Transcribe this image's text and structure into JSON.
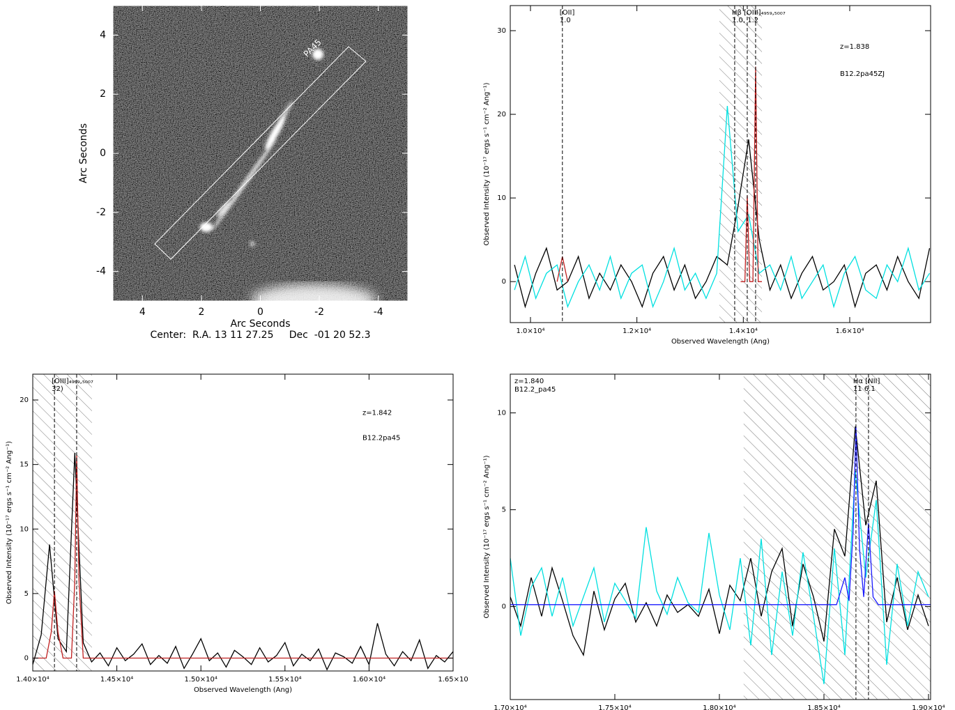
{
  "chart_data": [
    {
      "type": "image",
      "xlim": [
        5,
        -5
      ],
      "ylim": [
        -5,
        5
      ],
      "xticks": [
        4,
        2,
        0,
        -2,
        -4
      ],
      "yticks": [
        -4,
        -2,
        0,
        2,
        4
      ],
      "xlabel": "Arc Seconds",
      "ylabel": "Arc Seconds",
      "caption": "Center:  R.A. 13 11 27.25     Dec  -01 20 52.3",
      "annotation": "PA45"
    },
    {
      "type": "spectrum",
      "xlabel": "Observed Wavelength (Ang)",
      "ylabel": "Observed Intensity (10⁻¹⁷ ergs s⁻¹ cm⁻² Ang⁻¹)",
      "xlim": [
        9620,
        17520
      ],
      "ylim": [
        -4.9,
        33
      ],
      "xticks": [
        {
          "value": 10000,
          "label": "1.0×10⁴"
        },
        {
          "value": 12000,
          "label": "1.2×10⁴"
        },
        {
          "value": 14000,
          "label": "1.4×10⁴"
        },
        {
          "value": 16000,
          "label": "1.6×10⁴"
        }
      ],
      "yticks": [
        0,
        10,
        20,
        30
      ],
      "shaded_range": [
        13550,
        14350
      ],
      "markers": [
        10600,
        13838,
        14074,
        14231
      ],
      "annotations": [
        {
          "x": 10600,
          "lines": [
            "[OII]",
            "1.0"
          ]
        },
        {
          "x": 13838,
          "lines": [
            "Hβ [OIII]₄₉₅₉,₅₀₀₇",
            "1.0, 1.2"
          ]
        }
      ],
      "notes": [
        "z=1.838",
        "B12.2pa45ZJ"
      ],
      "notes_corner": "upper right",
      "x": [
        9700,
        9900,
        10100,
        10300,
        10500,
        10700,
        10900,
        11100,
        11300,
        11500,
        11700,
        11900,
        12100,
        12300,
        12500,
        12700,
        12900,
        13100,
        13300,
        13500,
        13700,
        13900,
        14100,
        14300,
        14500,
        14700,
        14900,
        15100,
        15300,
        15500,
        15700,
        15900,
        16100,
        16300,
        16500,
        16700,
        16900,
        17100,
        17300,
        17500
      ],
      "series": [
        {
          "color": "#000000",
          "values": [
            2,
            -3,
            1,
            4,
            -1,
            0,
            3,
            -2,
            1,
            -1,
            2,
            0,
            -3,
            1,
            3,
            -1,
            2,
            -2,
            0,
            3,
            2,
            9,
            17,
            5,
            -1,
            2,
            -2,
            1,
            3,
            -1,
            0,
            2,
            -3,
            1,
            2,
            -1,
            3,
            0,
            -2,
            4
          ]
        },
        {
          "color": "#00e0e0",
          "values": [
            -1,
            3,
            -2,
            1,
            2,
            -3,
            0,
            2,
            -1,
            3,
            -2,
            1,
            2,
            -3,
            0,
            4,
            -1,
            1,
            -2,
            1,
            21,
            6,
            8,
            1,
            2,
            -1,
            3,
            -2,
            0,
            2,
            -3,
            1,
            3,
            -1,
            -2,
            2,
            0,
            4,
            -1,
            1
          ]
        },
        {
          "color": "#c02020",
          "x": [
            10500,
            10600,
            10700,
            12000,
            13950,
            14030,
            14074,
            14120,
            14180,
            14231,
            14280,
            14350
          ],
          "values": [
            0,
            3,
            0,
            null,
            0,
            0,
            10.3,
            0,
            0,
            25.7,
            0,
            0
          ]
        }
      ]
    },
    {
      "type": "spectrum",
      "xlabel": "Observed Wavelength (Ang)",
      "ylabel": "Observed Intensity (10⁻¹⁷ ergs s⁻¹ cm⁻² Ang⁻¹)",
      "xlim": [
        14000,
        16500
      ],
      "ylim": [
        -1,
        22
      ],
      "xticks": [
        {
          "value": 14000,
          "label": "1.40×10⁴"
        },
        {
          "value": 14500,
          "label": "1.45×10⁴"
        },
        {
          "value": 15000,
          "label": "1.50×10⁴"
        },
        {
          "value": 15500,
          "label": "1.55×10⁴"
        },
        {
          "value": 16000,
          "label": "1.60×10⁴"
        },
        {
          "value": 16500,
          "label": "1.65×10"
        }
      ],
      "yticks": [
        0,
        5,
        10,
        15,
        20
      ],
      "shaded_range": [
        14000,
        14352
      ],
      "markers": [
        14129,
        14261
      ],
      "annotations": [
        {
          "x": 14129,
          "lines": [
            "[OIII]₄₉₅₉,₅₀₀₇",
            "32)"
          ]
        }
      ],
      "notes": [
        "z=1.842",
        "B12.2pa45"
      ],
      "notes_corner": "upper right",
      "x": [
        14000,
        14050,
        14100,
        14150,
        14200,
        14250,
        14300,
        14350,
        14400,
        14450,
        14500,
        14550,
        14600,
        14650,
        14700,
        14750,
        14800,
        14850,
        14900,
        14950,
        15000,
        15050,
        15100,
        15150,
        15200,
        15250,
        15300,
        15350,
        15400,
        15450,
        15500,
        15550,
        15600,
        15650,
        15700,
        15750,
        15800,
        15850,
        15900,
        15950,
        16000,
        16050,
        16100,
        16150,
        16200,
        16250,
        16300,
        16350,
        16400,
        16450,
        16500
      ],
      "series": [
        {
          "color": "#000000",
          "values": [
            -0.5,
            1.8,
            8.8,
            1.5,
            0.5,
            15.9,
            1.2,
            -0.3,
            0.4,
            -0.6,
            0.8,
            -0.2,
            0.3,
            1.1,
            -0.5,
            0.2,
            -0.4,
            0.9,
            -0.8,
            0.3,
            1.5,
            -0.2,
            0.4,
            -0.7,
            0.6,
            0.1,
            -0.5,
            0.8,
            -0.3,
            0.2,
            1.2,
            -0.6,
            0.3,
            -0.2,
            0.7,
            -0.9,
            0.4,
            0.1,
            -0.4,
            0.9,
            -0.5,
            2.7,
            0.3,
            -0.6,
            0.5,
            -0.2,
            1.4,
            -0.8,
            0.2,
            -0.3,
            0.5
          ]
        },
        {
          "color": "#c02020",
          "x": [
            14000,
            14080,
            14110,
            14129,
            14150,
            14180,
            14230,
            14250,
            14261,
            14275,
            14300,
            14400,
            16500
          ],
          "values": [
            0,
            0,
            2,
            5.2,
            2,
            0,
            0,
            6,
            15.7,
            6,
            0,
            0,
            0
          ]
        }
      ]
    },
    {
      "type": "spectrum",
      "xlabel": "Observed Wavelength (Ang)",
      "ylabel": "Observed Intensity (10⁻¹⁷ ergs s⁻¹ cm⁻² Ang⁻¹)",
      "xlim": [
        17000,
        19010
      ],
      "ylim": [
        -4.8,
        12
      ],
      "xticks": [
        {
          "value": 17000,
          "label": "1.70×10⁴"
        },
        {
          "value": 17500,
          "label": "1.75×10⁴"
        },
        {
          "value": 18000,
          "label": "1.80×10⁴"
        },
        {
          "value": 18500,
          "label": "1.85×10⁴"
        },
        {
          "value": 19000,
          "label": "1.90×10⁴"
        }
      ],
      "yticks": [
        0,
        5,
        10
      ],
      "shaded_range": [
        18116,
        19010
      ],
      "markers": [
        18653,
        18713
      ],
      "annotations": [
        {
          "x": 18653,
          "lines": [
            "Hα [NII]",
            "11 6.1"
          ]
        }
      ],
      "notes": [
        "z=1.840",
        "B12.2_pa45"
      ],
      "notes_corner": "upper left",
      "x": [
        17000,
        17050,
        17100,
        17150,
        17200,
        17250,
        17300,
        17350,
        17400,
        17450,
        17500,
        17550,
        17600,
        17650,
        17700,
        17750,
        17800,
        17850,
        17900,
        17950,
        18000,
        18050,
        18100,
        18150,
        18200,
        18250,
        18300,
        18350,
        18400,
        18450,
        18500,
        18550,
        18600,
        18650,
        18700,
        18750,
        18800,
        18850,
        18900,
        18950,
        19000
      ],
      "series": [
        {
          "color": "#000000",
          "values": [
            0.5,
            -1,
            1.5,
            -0.5,
            2,
            0.3,
            -1.5,
            -2.5,
            0.8,
            -1.2,
            0.4,
            1.2,
            -0.8,
            0.2,
            -1,
            0.6,
            -0.3,
            0.1,
            -0.5,
            0.9,
            -1.4,
            1.1,
            0.3,
            2.5,
            -0.5,
            1.8,
            3,
            -1,
            2.2,
            0.5,
            -1.8,
            4,
            2.6,
            9.3,
            4.2,
            6.5,
            -0.8,
            1.5,
            -1.2,
            0.6,
            -1
          ]
        },
        {
          "color": "#00e0e0",
          "values": [
            2.5,
            -1.5,
            1,
            2,
            -0.5,
            1.5,
            -1,
            0.5,
            2,
            -0.8,
            1.2,
            0.3,
            -0.6,
            4.1,
            0.8,
            -0.4,
            1.5,
            0.2,
            -0.3,
            3.8,
            0.6,
            -1.2,
            2.5,
            -2,
            3.5,
            -2.5,
            1.8,
            -1.5,
            2.8,
            -0.5,
            -4,
            3,
            -2.5,
            7,
            1.5,
            5.5,
            -3,
            2.2,
            -1,
            1.8,
            0.5
          ]
        },
        {
          "color": "#1a1aff",
          "x": [
            17000,
            18560,
            18600,
            18620,
            18640,
            18653,
            18670,
            18690,
            18713,
            18735,
            18760,
            19010
          ],
          "values": [
            0.1,
            0.1,
            1.5,
            0.3,
            4,
            9.3,
            3,
            0.5,
            4.3,
            0.5,
            0.1,
            0.1
          ]
        }
      ]
    }
  ]
}
